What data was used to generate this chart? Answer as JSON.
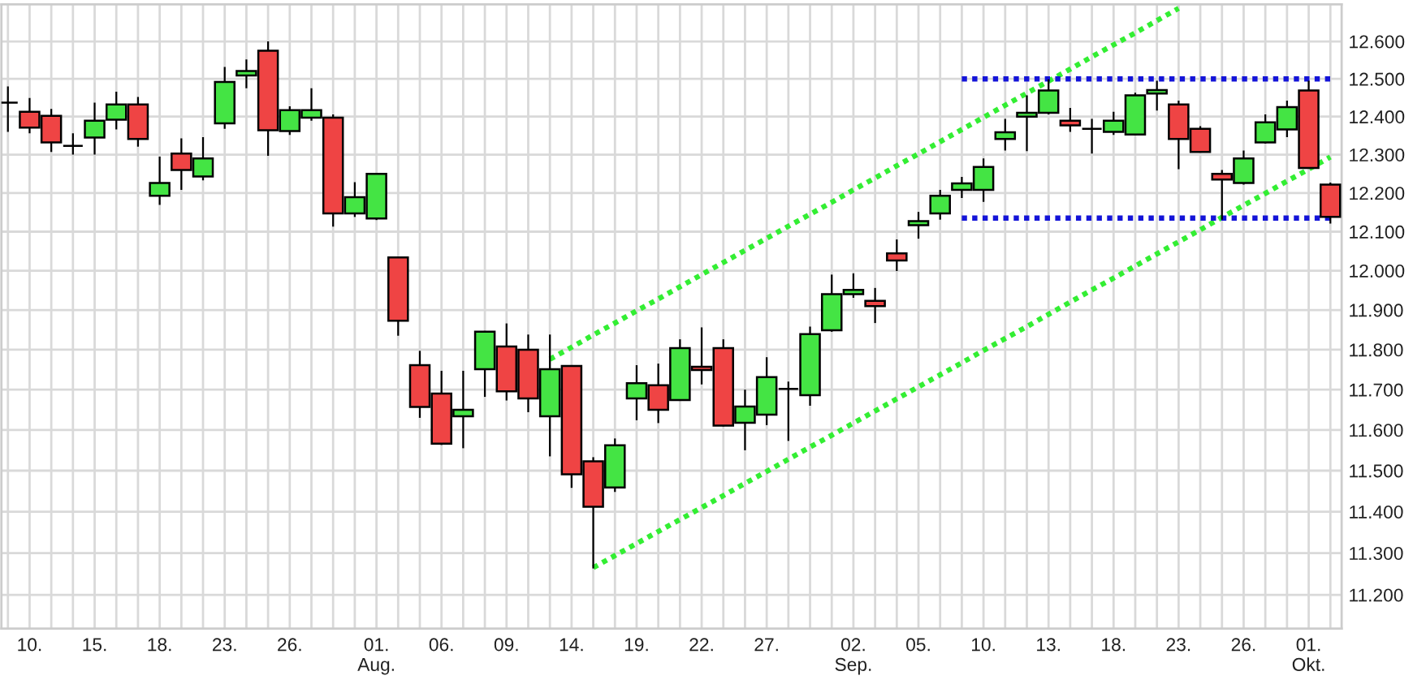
{
  "chart_data": {
    "type": "candlestick",
    "categories": [
      null,
      "10.",
      null,
      null,
      "15.",
      null,
      null,
      "18.",
      null,
      null,
      "23.",
      null,
      null,
      "26.",
      null,
      null,
      null,
      "01.\nAug.",
      null,
      null,
      "06.",
      null,
      null,
      "09.",
      null,
      null,
      "14.",
      null,
      null,
      "19.",
      null,
      null,
      "22.",
      null,
      null,
      "27.",
      null,
      null,
      null,
      "02.\nSep.",
      null,
      null,
      "05.",
      null,
      null,
      "10.",
      null,
      null,
      "13.",
      null,
      null,
      "18.",
      null,
      null,
      "23.",
      null,
      null,
      "26.",
      null,
      null,
      "01.\nOkt.",
      null
    ],
    "ohlc": [
      [
        12437,
        12480,
        12360,
        12437
      ],
      [
        12413,
        12449,
        12356,
        12371
      ],
      [
        12402,
        12420,
        12307,
        12332
      ],
      [
        12323,
        12356,
        12300,
        12323
      ],
      [
        12345,
        12437,
        12300,
        12389
      ],
      [
        12392,
        12466,
        12366,
        12432
      ],
      [
        12432,
        12452,
        12321,
        12341
      ],
      [
        12193,
        12295,
        12169,
        12226
      ],
      [
        12303,
        12343,
        12208,
        12260
      ],
      [
        12243,
        12346,
        12233,
        12290
      ],
      [
        12382,
        12532,
        12368,
        12492
      ],
      [
        12509,
        12552,
        12475,
        12521
      ],
      [
        12575,
        12600,
        12297,
        12364
      ],
      [
        12362,
        12427,
        12352,
        12417
      ],
      [
        12397,
        12475,
        12389,
        12417
      ],
      [
        12397,
        12406,
        12113,
        12147
      ],
      [
        12147,
        12228,
        12138,
        12189
      ],
      [
        12134,
        12252,
        12130,
        12250
      ],
      [
        12034,
        12036,
        11835,
        11873
      ],
      [
        11761,
        11797,
        11630,
        11657
      ],
      [
        11690,
        11747,
        11563,
        11566
      ],
      [
        11634,
        11747,
        11555,
        11650
      ],
      [
        11751,
        11847,
        11682,
        11845
      ],
      [
        11808,
        11866,
        11673,
        11696
      ],
      [
        11800,
        11838,
        11644,
        11678
      ],
      [
        11634,
        11838,
        11535,
        11751
      ],
      [
        11759,
        11760,
        11458,
        11491
      ],
      [
        11523,
        11533,
        11263,
        11412
      ],
      [
        11459,
        11579,
        11448,
        11562
      ],
      [
        11678,
        11761,
        11624,
        11716
      ],
      [
        11711,
        11765,
        11617,
        11650
      ],
      [
        11674,
        11826,
        11672,
        11804
      ],
      [
        11757,
        11856,
        11713,
        11749
      ],
      [
        11804,
        11826,
        11609,
        11611
      ],
      [
        11618,
        11700,
        11550,
        11658
      ],
      [
        11638,
        11781,
        11612,
        11731
      ],
      [
        11702,
        11720,
        11573,
        11702
      ],
      [
        11686,
        11858,
        11660,
        11839
      ],
      [
        11849,
        11990,
        11845,
        11940
      ],
      [
        11940,
        11993,
        11931,
        11951
      ],
      [
        11923,
        11956,
        11867,
        11910
      ],
      [
        12044,
        12080,
        11999,
        12026
      ],
      [
        12117,
        12151,
        12082,
        12127
      ],
      [
        12147,
        12208,
        12131,
        12193
      ],
      [
        12208,
        12242,
        12187,
        12225
      ],
      [
        12208,
        12290,
        12177,
        12268
      ],
      [
        12341,
        12394,
        12311,
        12359
      ],
      [
        12400,
        12456,
        12309,
        12410
      ],
      [
        12410,
        12499,
        12406,
        12469
      ],
      [
        12389,
        12423,
        12360,
        12377
      ],
      [
        12368,
        12394,
        12303,
        12368
      ],
      [
        12360,
        12413,
        12352,
        12389
      ],
      [
        12353,
        12463,
        12352,
        12456
      ],
      [
        12461,
        12495,
        12416,
        12470
      ],
      [
        12432,
        12442,
        12262,
        12341
      ],
      [
        12368,
        12375,
        12306,
        12307
      ],
      [
        12250,
        12260,
        12131,
        12235
      ],
      [
        12226,
        12311,
        12222,
        12290
      ],
      [
        12332,
        12406,
        12329,
        12385
      ],
      [
        12366,
        12442,
        12346,
        12425
      ],
      [
        12469,
        12495,
        12263,
        12265
      ],
      [
        12222,
        12227,
        12121,
        12138
      ]
    ],
    "colors": [
      "#000000",
      "#ef4444",
      "#ef4444",
      "#000000",
      "#44e444",
      "#44e444",
      "#ef4444",
      "#44e444",
      "#ef4444",
      "#44e444",
      "#44e444",
      "#44e444",
      "#ef4444",
      "#44e444",
      "#44e444",
      "#ef4444",
      "#44e444",
      "#44e444",
      "#ef4444",
      "#ef4444",
      "#ef4444",
      "#44e444",
      "#44e444",
      "#ef4444",
      "#ef4444",
      "#44e444",
      "#ef4444",
      "#ef4444",
      "#44e444",
      "#44e444",
      "#ef4444",
      "#44e444",
      "#ef4444",
      "#ef4444",
      "#44e444",
      "#44e444",
      "#000000",
      "#44e444",
      "#44e444",
      "#44e444",
      "#ef4444",
      "#ef4444",
      "#44e444",
      "#44e444",
      "#44e444",
      "#44e444",
      "#44e444",
      "#44e444",
      "#44e444",
      "#ef4444",
      "#000000",
      "#44e444",
      "#44e444",
      "#44e444",
      "#ef4444",
      "#ef4444",
      "#ef4444",
      "#44e444",
      "#44e444",
      "#44e444",
      "#ef4444",
      "#ef4444"
    ],
    "series": [
      {
        "type": "line",
        "color": "#33ee33",
        "line_style": "dotted",
        "values": [
          null,
          null,
          null,
          null,
          null,
          null,
          null,
          null,
          null,
          null,
          null,
          null,
          null,
          null,
          null,
          null,
          null,
          null,
          null,
          null,
          null,
          null,
          null,
          null,
          null,
          11776,
          11806,
          11837,
          11867,
          11898,
          11928,
          11959,
          11990,
          12021,
          12052,
          12083,
          12114,
          12145,
          12176,
          12208,
          12239,
          12271,
          12302,
          12334,
          12366,
          12398,
          12430,
          12462,
          12494,
          12526,
          12559,
          12591,
          12623,
          12656,
          12689,
          null,
          null,
          null,
          null,
          null,
          null,
          null
        ]
      },
      {
        "type": "line",
        "color": "#33ee33",
        "line_style": "dotted",
        "values": [
          null,
          null,
          null,
          null,
          null,
          null,
          null,
          null,
          null,
          null,
          null,
          null,
          null,
          null,
          null,
          null,
          null,
          null,
          null,
          null,
          null,
          null,
          null,
          null,
          null,
          null,
          null,
          11265,
          11294,
          11323,
          11352,
          11381,
          11410,
          11439,
          11469,
          11498,
          11528,
          11558,
          11587,
          11617,
          11647,
          11677,
          11707,
          11737,
          11767,
          11798,
          11828,
          11858,
          11889,
          11920,
          11951,
          11981,
          12012,
          12043,
          12074,
          12105,
          12137,
          12168,
          12199,
          12231,
          12262,
          12294
        ]
      },
      {
        "type": "line",
        "color": "#1414d8",
        "line_style": "dotted",
        "values": [
          null,
          null,
          null,
          null,
          null,
          null,
          null,
          null,
          null,
          null,
          null,
          null,
          null,
          null,
          null,
          null,
          null,
          null,
          null,
          null,
          null,
          null,
          null,
          null,
          null,
          null,
          null,
          null,
          null,
          null,
          null,
          null,
          null,
          null,
          null,
          null,
          null,
          null,
          null,
          null,
          null,
          null,
          null,
          null,
          12500,
          12500,
          12500,
          12500,
          12500,
          12500,
          12500,
          12500,
          12500,
          12500,
          12500,
          12500,
          12500,
          12500,
          12500,
          12500,
          12500,
          12500
        ]
      },
      {
        "type": "line",
        "color": "#1414d8",
        "line_style": "dotted",
        "values": [
          null,
          null,
          null,
          null,
          null,
          null,
          null,
          null,
          null,
          null,
          null,
          null,
          null,
          null,
          null,
          null,
          null,
          null,
          null,
          null,
          null,
          null,
          null,
          null,
          null,
          null,
          null,
          null,
          null,
          null,
          null,
          null,
          null,
          null,
          null,
          null,
          null,
          null,
          null,
          null,
          null,
          null,
          null,
          null,
          12135,
          12135,
          12135,
          12135,
          12135,
          12135,
          12135,
          12135,
          12135,
          12135,
          12135,
          12135,
          12135,
          12135,
          12135,
          12135,
          12135,
          12135
        ]
      }
    ],
    "log": true,
    "ylim": [
      11120,
      12700
    ],
    "yticks": [
      {
        "value": 11200,
        "label": "11.200"
      },
      {
        "value": 11300,
        "label": "11.300"
      },
      {
        "value": 11400,
        "label": "11.400"
      },
      {
        "value": 11500,
        "label": "11.500"
      },
      {
        "value": 11600,
        "label": "11.600"
      },
      {
        "value": 11700,
        "label": "11.700"
      },
      {
        "value": 11800,
        "label": "11.800"
      },
      {
        "value": 11900,
        "label": "11.900"
      },
      {
        "value": 12000,
        "label": "12.000"
      },
      {
        "value": 12100,
        "label": "12.100"
      },
      {
        "value": 12200,
        "label": "12.200"
      },
      {
        "value": 12300,
        "label": "12.300"
      },
      {
        "value": 12400,
        "label": "12.400"
      },
      {
        "value": 12500,
        "label": "12.500"
      },
      {
        "value": 12600,
        "label": "12.600"
      }
    ],
    "grid": true
  }
}
